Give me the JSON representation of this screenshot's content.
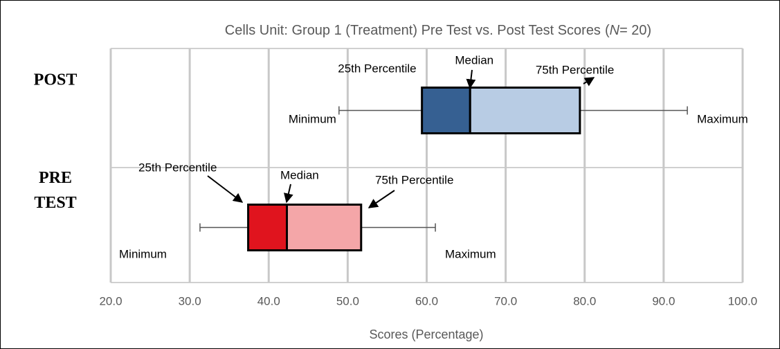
{
  "chart_data": {
    "type": "box",
    "title": "Cells Unit: Group 1 (Treatment) Pre Test vs. Post Test Scores",
    "title_n": "N",
    "title_n_value": "= 20)",
    "x_label": "Scores (Percentage)",
    "xlim": [
      20,
      100
    ],
    "xticks": [
      {
        "value": 20,
        "label": "20.0"
      },
      {
        "value": 30,
        "label": "30.0"
      },
      {
        "value": 40,
        "label": "40.0"
      },
      {
        "value": 50,
        "label": "50.0"
      },
      {
        "value": 60,
        "label": "60.0"
      },
      {
        "value": 70,
        "label": "70.0"
      },
      {
        "value": 80,
        "label": "80.0"
      },
      {
        "value": 90,
        "label": "90.0"
      },
      {
        "value": 100,
        "label": "100.0"
      }
    ],
    "grid": true,
    "series": [
      {
        "name": "POST",
        "label_color": "#203864",
        "colors": [
          "#366092",
          "#b8cce4"
        ],
        "min": 48.9,
        "q1": 59.4,
        "median": 65.5,
        "q3": 79.4,
        "max": 93.0,
        "annotations": [
          "Minimum",
          "25th Percentile",
          "Median",
          "75th Percentile",
          "Maximum"
        ]
      },
      {
        "name": "PRE TEST",
        "label_color": "#e0141e",
        "colors": [
          "#e0141e",
          "#f4a6a8"
        ],
        "min": 31.3,
        "q1": 37.4,
        "median": 42.3,
        "q3": 51.7,
        "max": 61.1,
        "annotations": [
          "Minimum",
          "25th Percentile",
          "Median",
          "75th Percentile",
          "Maximum"
        ]
      }
    ]
  }
}
